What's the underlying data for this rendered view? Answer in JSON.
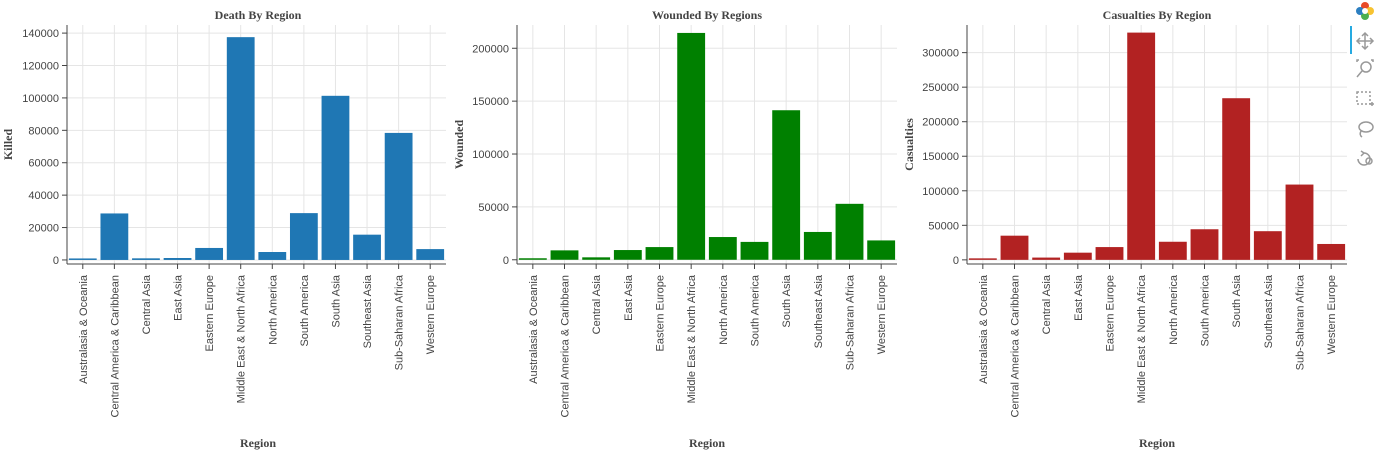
{
  "colors": {
    "killed": "#1f77b4",
    "wounded": "#008000",
    "casualties": "#b22222",
    "grid": "#e5e5e5",
    "axis": "#444444",
    "tool_active": "#26aae1"
  },
  "toolbar": {
    "tools": [
      "bokeh-logo-icon",
      "pan-icon",
      "wheel-zoom-icon",
      "box-zoom-icon",
      "lasso-select-icon",
      "reset-icon"
    ]
  },
  "chart_data": [
    {
      "type": "bar",
      "title": "Death By Region",
      "xlabel": "Region",
      "ylabel": "Killed",
      "categories": [
        "Australasia & Oceania",
        "Central America & Caribbean",
        "Central Asia",
        "East Asia",
        "Eastern Europe",
        "Middle East & North Africa",
        "North America",
        "South America",
        "South Asia",
        "Southeast Asia",
        "Sub-Saharan Africa",
        "Western Europe"
      ],
      "values": [
        150,
        28700,
        1000,
        1200,
        7400,
        137500,
        4900,
        28900,
        101300,
        15600,
        78400,
        6700
      ],
      "ylim": [
        -2500,
        145000
      ],
      "yticks": [
        0,
        20000,
        40000,
        60000,
        80000,
        100000,
        120000,
        140000
      ],
      "grid": true
    },
    {
      "type": "bar",
      "title": "Wounded By Regions",
      "xlabel": "Region",
      "ylabel": "Wounded",
      "categories": [
        "Australasia & Oceania",
        "Central America & Caribbean",
        "Central Asia",
        "East Asia",
        "Eastern Europe",
        "Middle East & North Africa",
        "North America",
        "South America",
        "South Asia",
        "Southeast Asia",
        "Sub-Saharan Africa",
        "Western Europe"
      ],
      "values": [
        300,
        8900,
        2300,
        9200,
        12000,
        214500,
        21500,
        16900,
        141400,
        26300,
        52900,
        18300
      ],
      "ylim": [
        -4000,
        222000
      ],
      "yticks": [
        0,
        50000,
        100000,
        150000,
        200000
      ],
      "grid": true
    },
    {
      "type": "bar",
      "title": "Casualties By Region",
      "xlabel": "Region",
      "ylabel": "Casualties",
      "categories": [
        "Australasia & Oceania",
        "Central America & Caribbean",
        "Central Asia",
        "East Asia",
        "Eastern Europe",
        "Middle East & North Africa",
        "North America",
        "South America",
        "South Asia",
        "Southeast Asia",
        "Sub-Saharan Africa",
        "Western Europe"
      ],
      "values": [
        450,
        35000,
        3300,
        10400,
        18500,
        329000,
        26200,
        44300,
        234000,
        41500,
        109000,
        23000
      ],
      "ylim": [
        -6000,
        340000
      ],
      "yticks": [
        0,
        50000,
        100000,
        150000,
        200000,
        250000,
        300000
      ],
      "grid": true
    }
  ]
}
